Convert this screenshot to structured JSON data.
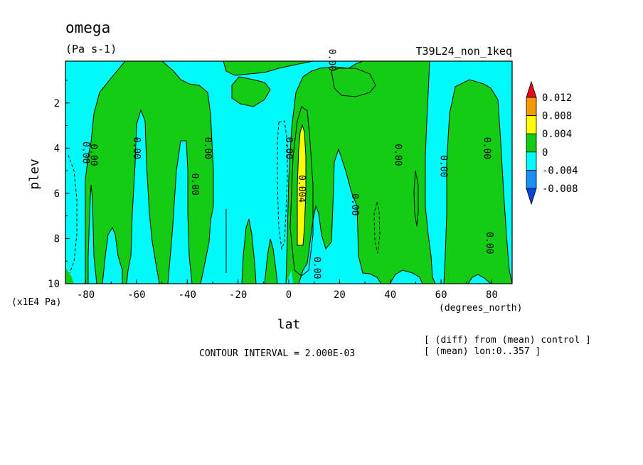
{
  "chart_data": {
    "type": "heatmap",
    "title": "omega",
    "units": "(Pa s-1)",
    "run_label": "T39L24_non_1keq",
    "xlabel": "lat",
    "x_units": "(degrees_north)",
    "ylabel": "plev",
    "y_units": "(x1E4 Pa)",
    "x_ticks": [
      "-80",
      "-60",
      "-40",
      "-20",
      "0",
      "20",
      "40",
      "60",
      "80"
    ],
    "y_ticks": [
      "2",
      "4",
      "6",
      "8",
      "10"
    ],
    "xlim": [
      -88,
      88
    ],
    "ylim": [
      10,
      0.15
    ],
    "colorbar": {
      "levels": [
        "0.012",
        "0.008",
        "0.004",
        "0",
        "-0.004",
        "-0.008"
      ],
      "colors": [
        "#e8081a",
        "#f39a05",
        "#fdfd00",
        "#13cc13",
        "#00fafa",
        "#1a90f5",
        "#0044e0"
      ]
    },
    "contour_labels": [
      {
        "text": "0.00",
        "lat": -80,
        "plev": 4.2
      },
      {
        "text": "0.00",
        "lat": -77,
        "plev": 4.3
      },
      {
        "text": "0.00",
        "lat": -60,
        "plev": 4.0
      },
      {
        "text": "0.00",
        "lat": -37,
        "plev": 5.6
      },
      {
        "text": "0.00",
        "lat": -32,
        "plev": 4.0
      },
      {
        "text": "0.00",
        "lat": 0,
        "plev": 4.0
      },
      {
        "text": "0.004",
        "lat": 5,
        "plev": 5.8
      },
      {
        "text": "0.00",
        "lat": 11,
        "plev": 9.3
      },
      {
        "text": "0.00",
        "lat": 26,
        "plev": 6.5
      },
      {
        "text": "0.00",
        "lat": 17,
        "plev": 0.1
      },
      {
        "text": "0.00",
        "lat": 43,
        "plev": 4.3
      },
      {
        "text": "0.00",
        "lat": 61,
        "plev": 4.8
      },
      {
        "text": "0.00",
        "lat": 78,
        "plev": 4.0
      },
      {
        "text": "0.00",
        "lat": 79,
        "plev": 8.2
      }
    ],
    "contour_interval_text": "CONTOUR INTERVAL = 2.000E-03",
    "info_lines": [
      "[ (diff) from (mean) control ]",
      "[ (mean) lon:0..357 ]"
    ]
  }
}
